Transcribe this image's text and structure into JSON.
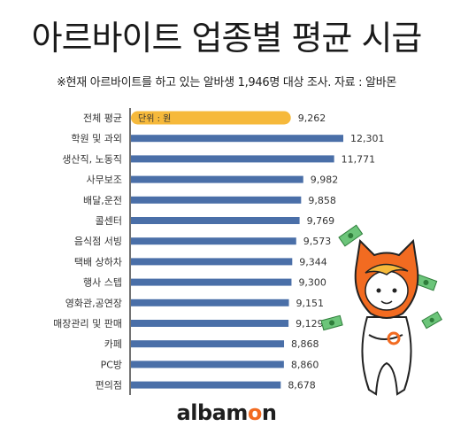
{
  "header": {
    "title": "아르바이트 업종별 평균 시급",
    "subtitle": "※현재 아르바이트를 하고 있는 알바생 1,946명 대상 조사. 자료 : 알바몬"
  },
  "logo": {
    "prefix": "albam",
    "accent": "o",
    "suffix": "n"
  },
  "colors": {
    "bar": "#4a6fa8",
    "highlight": "#f6b93b",
    "accent": "#f26b21"
  },
  "chart_data": {
    "type": "bar",
    "orientation": "horizontal",
    "unit_label": "단위 : 원",
    "categories": [
      "전체 평균",
      "학원 및 과외",
      "생산직, 노동직",
      "사무보조",
      "배달,운전",
      "콜센터",
      "음식점 서빙",
      "택배 상하차",
      "행사 스텝",
      "영화관,공연장",
      "매장관리 및 판매",
      "카페",
      "PC방",
      "편의점"
    ],
    "values": [
      9262,
      12301,
      11771,
      9982,
      9858,
      9769,
      9573,
      9344,
      9300,
      9151,
      9129,
      8868,
      8860,
      8678
    ],
    "value_labels": [
      "9,262",
      "12,301",
      "11,771",
      "9,982",
      "9,858",
      "9,769",
      "9,573",
      "9,344",
      "9,300",
      "9,151",
      "9,129",
      "8,868",
      "8,860",
      "8,678"
    ],
    "highlight_index": 0,
    "xlim": [
      0,
      12301
    ],
    "grid": false,
    "legend": "none"
  }
}
